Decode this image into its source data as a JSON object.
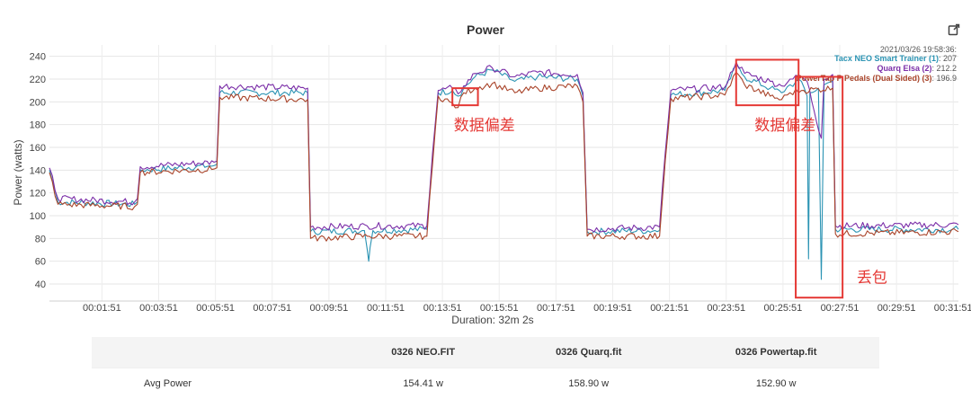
{
  "chart_data": {
    "type": "line",
    "title": "Power",
    "xlabel": "Duration: 32m 2s",
    "ylabel": "Power (watts)",
    "ylim": [
      25,
      250
    ],
    "xlim_minutes": [
      0,
      32.033
    ],
    "yticks": [
      40,
      60,
      80,
      100,
      120,
      140,
      160,
      180,
      200,
      220,
      240
    ],
    "xticks": [
      {
        "minutes": 1.85,
        "label": "00:01:51"
      },
      {
        "minutes": 3.85,
        "label": "00:03:51"
      },
      {
        "minutes": 5.85,
        "label": "00:05:51"
      },
      {
        "minutes": 7.85,
        "label": "00:07:51"
      },
      {
        "minutes": 9.85,
        "label": "00:09:51"
      },
      {
        "minutes": 11.85,
        "label": "00:11:51"
      },
      {
        "minutes": 13.85,
        "label": "00:13:51"
      },
      {
        "minutes": 15.85,
        "label": "00:15:51"
      },
      {
        "minutes": 17.85,
        "label": "00:17:51"
      },
      {
        "minutes": 19.85,
        "label": "00:19:51"
      },
      {
        "minutes": 21.85,
        "label": "00:21:51"
      },
      {
        "minutes": 23.85,
        "label": "00:23:51"
      },
      {
        "minutes": 25.85,
        "label": "00:25:51"
      },
      {
        "minutes": 27.85,
        "label": "00:27:51"
      },
      {
        "minutes": 29.85,
        "label": "00:29:51"
      },
      {
        "minutes": 31.85,
        "label": "00:31:51"
      }
    ],
    "grid": true,
    "legend_position": "top-right",
    "legend_timestamp": "2021/03/26 19:58:36:",
    "series": [
      {
        "name": "Tacx NEO Smart Trainer (1)",
        "value_label": ": 207",
        "color": "#2a93b3",
        "points": [
          [
            0,
            140
          ],
          [
            0.3,
            112
          ],
          [
            3,
            110
          ],
          [
            3.1,
            112
          ],
          [
            3.2,
            140
          ],
          [
            5.8,
            144
          ],
          [
            5.9,
            145
          ],
          [
            6,
            208
          ],
          [
            9.1,
            208
          ],
          [
            9.2,
            86
          ],
          [
            11.1,
            87
          ],
          [
            11.2,
            70
          ],
          [
            11.25,
            60
          ],
          [
            11.3,
            72
          ],
          [
            11.4,
            87
          ],
          [
            13.3,
            88
          ],
          [
            13.5,
            150
          ],
          [
            13.7,
            208
          ],
          [
            14.2,
            210
          ],
          [
            14.4,
            205
          ],
          [
            14.6,
            212
          ],
          [
            15,
            222
          ],
          [
            15.6,
            228
          ],
          [
            16.4,
            218
          ],
          [
            17.2,
            222
          ],
          [
            18.6,
            220
          ],
          [
            18.8,
            205
          ],
          [
            18.95,
            86
          ],
          [
            21.5,
            87
          ],
          [
            21.7,
            150
          ],
          [
            21.9,
            206
          ],
          [
            23.8,
            210
          ],
          [
            24.2,
            232
          ],
          [
            24.5,
            222
          ],
          [
            25.4,
            212
          ],
          [
            25.8,
            208
          ],
          [
            26.1,
            215
          ],
          [
            26.5,
            218
          ],
          [
            26.7,
            205
          ],
          [
            26.75,
            62
          ],
          [
            26.8,
            208
          ],
          [
            27.1,
            212
          ],
          [
            27.2,
            44
          ],
          [
            27.3,
            215
          ],
          [
            27.6,
            218
          ],
          [
            27.7,
            88
          ],
          [
            32.033,
            88
          ]
        ]
      },
      {
        "name": "Quarq Elsa (2)",
        "value_label": ": 212.2",
        "color": "#7b2ea8",
        "points": [
          [
            0,
            142
          ],
          [
            0.3,
            115
          ],
          [
            3,
            112
          ],
          [
            3.1,
            115
          ],
          [
            3.2,
            143
          ],
          [
            5.8,
            147
          ],
          [
            5.9,
            148
          ],
          [
            6,
            214
          ],
          [
            9.1,
            212
          ],
          [
            9.2,
            90
          ],
          [
            11.2,
            91
          ],
          [
            13.3,
            91
          ],
          [
            13.5,
            155
          ],
          [
            13.7,
            210
          ],
          [
            14.2,
            212
          ],
          [
            14.4,
            207
          ],
          [
            14.6,
            214
          ],
          [
            15,
            225
          ],
          [
            15.6,
            230
          ],
          [
            16.4,
            222
          ],
          [
            17.2,
            226
          ],
          [
            18.6,
            224
          ],
          [
            18.8,
            208
          ],
          [
            18.95,
            88
          ],
          [
            21.5,
            90
          ],
          [
            21.7,
            155
          ],
          [
            21.9,
            210
          ],
          [
            23.8,
            213
          ],
          [
            24.2,
            235
          ],
          [
            24.5,
            225
          ],
          [
            25.4,
            218
          ],
          [
            25.8,
            214
          ],
          [
            26.1,
            220
          ],
          [
            26.5,
            222
          ],
          [
            26.7,
            218
          ],
          [
            27.2,
            168
          ],
          [
            27.3,
            220
          ],
          [
            27.6,
            224
          ],
          [
            27.7,
            91
          ],
          [
            32.033,
            92
          ]
        ]
      },
      {
        "name": "PowerTap P Pedals (Dual Sided) (3)",
        "value_label": ": 196.9",
        "color": "#a9442a",
        "points": [
          [
            0,
            138
          ],
          [
            0.3,
            110
          ],
          [
            3,
            108
          ],
          [
            3.1,
            110
          ],
          [
            3.2,
            138
          ],
          [
            5.8,
            141
          ],
          [
            5.9,
            142
          ],
          [
            6,
            204
          ],
          [
            9.1,
            202
          ],
          [
            9.2,
            80
          ],
          [
            11.2,
            82
          ],
          [
            13.3,
            82
          ],
          [
            13.5,
            145
          ],
          [
            13.7,
            205
          ],
          [
            14.1,
            200
          ],
          [
            14.4,
            195
          ],
          [
            14.6,
            208
          ],
          [
            15,
            212
          ],
          [
            15.6,
            216
          ],
          [
            16.4,
            208
          ],
          [
            17.2,
            212
          ],
          [
            18.6,
            214
          ],
          [
            18.8,
            200
          ],
          [
            18.95,
            82
          ],
          [
            21.5,
            82
          ],
          [
            21.7,
            148
          ],
          [
            21.9,
            203
          ],
          [
            23.8,
            206
          ],
          [
            24.2,
            226
          ],
          [
            24.5,
            215
          ],
          [
            25.4,
            205
          ],
          [
            25.8,
            202
          ],
          [
            26.1,
            208
          ],
          [
            26.5,
            210
          ],
          [
            27.6,
            212
          ],
          [
            27.7,
            84
          ],
          [
            32.033,
            86
          ]
        ]
      }
    ],
    "annotations": [
      {
        "text": "数据偏差",
        "x_min": 14.25,
        "y": 175
      },
      {
        "text": "数据偏差",
        "x_min": 24.85,
        "y": 175
      },
      {
        "text": "丢包",
        "x_min": 28.45,
        "y": 41
      }
    ],
    "annotation_boxes": [
      {
        "x0": 14.2,
        "x1": 15.1,
        "y0": 197,
        "y1": 212
      },
      {
        "x0": 24.2,
        "x1": 26.4,
        "y0": 197,
        "y1": 237
      },
      {
        "x0": 26.3,
        "x1": 27.95,
        "y0": 28,
        "y1": 222
      }
    ],
    "annotation_color": "#e53935"
  },
  "summary_table": {
    "headers": [
      "",
      "0326 NEO.FIT",
      "0326 Quarq.fit",
      "0326 Powertap.fit"
    ],
    "rows": [
      {
        "label": "Avg Power",
        "values": [
          "154.41 w",
          "158.90 w",
          "152.90 w"
        ]
      }
    ]
  },
  "icons": {
    "export": "external-link-icon"
  }
}
